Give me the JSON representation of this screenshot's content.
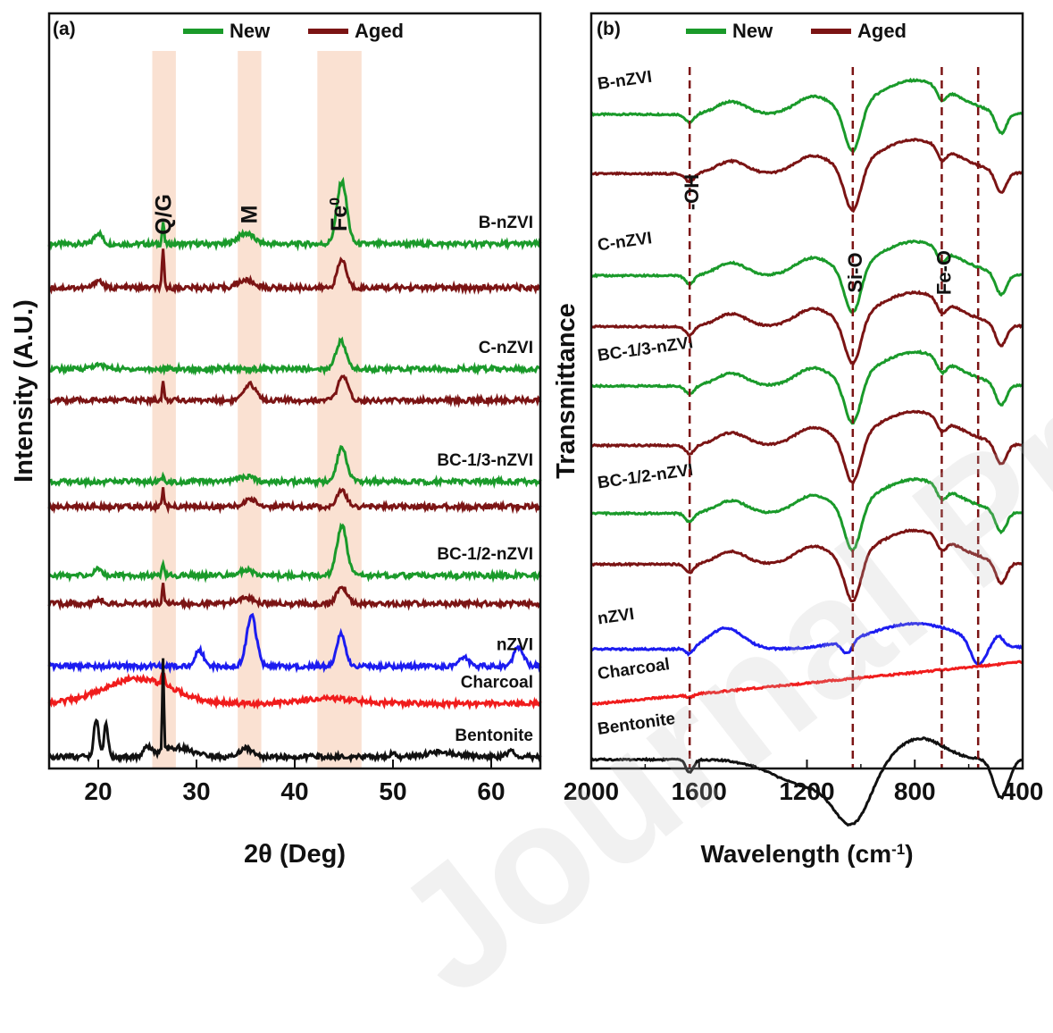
{
  "watermark": "Journal Pre-proof",
  "colors": {
    "new": "#1a9a2a",
    "aged": "#7b1414",
    "nzvi": "#1c1cf0",
    "charcoal": "#f01c1c",
    "bentonite": "#111111",
    "band": "#f8d7c3",
    "dashed": "#7b1414"
  },
  "chart_data": [
    {
      "type": "line",
      "panel_label": "(a)",
      "xlabel": "2θ (Deg)",
      "ylabel": "Intensity (A.U.)",
      "xlim": [
        15,
        65
      ],
      "xticks": [
        20,
        30,
        40,
        50,
        60
      ],
      "legend": {
        "placement": "top",
        "entries": [
          {
            "name": "New",
            "color": "#1a9a2a"
          },
          {
            "name": "Aged",
            "color": "#7b1414"
          }
        ]
      },
      "bands": [
        {
          "label": "Q/G",
          "range": [
            25.5,
            27.9
          ]
        },
        {
          "label": "M",
          "range": [
            34.2,
            36.6
          ]
        },
        {
          "label": "Fe",
          "sup": "0",
          "range": [
            42.3,
            46.8
          ]
        }
      ],
      "curves": [
        {
          "label": "B-nZVI",
          "color": "#1a9a2a",
          "offset": 8.2,
          "peaks": [
            [
              20,
              0.18,
              0.4
            ],
            [
              26.6,
              0.35,
              0.1
            ],
            [
              35,
              0.17,
              0.8
            ],
            [
              44.8,
              1.0,
              0.5
            ]
          ]
        },
        {
          "label": "",
          "color": "#7b1414",
          "offset": 7.5,
          "peaks": [
            [
              20,
              0.12,
              0.4
            ],
            [
              26.6,
              0.6,
              0.1
            ],
            [
              35,
              0.12,
              0.8
            ],
            [
              44.8,
              0.45,
              0.45
            ]
          ]
        },
        {
          "label": "C-nZVI",
          "color": "#1a9a2a",
          "offset": 6.2,
          "peaks": [
            [
              20,
              0.06,
              0.8
            ],
            [
              44.7,
              0.45,
              0.5
            ]
          ]
        },
        {
          "label": "",
          "color": "#7b1414",
          "offset": 5.7,
          "peaks": [
            [
              26.6,
              0.3,
              0.1
            ],
            [
              35.5,
              0.25,
              0.6
            ],
            [
              44.9,
              0.38,
              0.5
            ]
          ]
        },
        {
          "label": "BC-1/3-nZVI",
          "color": "#1a9a2a",
          "offset": 4.4,
          "peaks": [
            [
              26.6,
              0.12,
              0.1
            ],
            [
              35,
              0.08,
              0.8
            ],
            [
              44.8,
              0.55,
              0.5
            ]
          ]
        },
        {
          "label": "",
          "color": "#7b1414",
          "offset": 4.0,
          "peaks": [
            [
              26.6,
              0.3,
              0.1
            ],
            [
              35.5,
              0.12,
              0.6
            ],
            [
              44.8,
              0.25,
              0.5
            ]
          ]
        },
        {
          "label": "BC-1/2-nZVI",
          "color": "#1a9a2a",
          "offset": 2.9,
          "peaks": [
            [
              20,
              0.1,
              0.4
            ],
            [
              26.6,
              0.2,
              0.1
            ],
            [
              35,
              0.08,
              0.8
            ],
            [
              44.8,
              0.8,
              0.5
            ]
          ]
        },
        {
          "label": "",
          "color": "#7b1414",
          "offset": 2.45,
          "peaks": [
            [
              20,
              0.08,
              0.4
            ],
            [
              26.6,
              0.35,
              0.1
            ],
            [
              35,
              0.1,
              0.8
            ],
            [
              44.8,
              0.28,
              0.5
            ]
          ]
        },
        {
          "label": "nZVI",
          "color": "#1c1cf0",
          "offset": 1.45,
          "peaks": [
            [
              30.3,
              0.25,
              0.45
            ],
            [
              35.6,
              0.8,
              0.5
            ],
            [
              44.7,
              0.5,
              0.45
            ],
            [
              57.2,
              0.15,
              0.5
            ],
            [
              62.8,
              0.3,
              0.5
            ]
          ]
        },
        {
          "label": "Charcoal",
          "color": "#f01c1c",
          "offset": 0.85,
          "peaks": [
            [
              24,
              0.4,
              3.5
            ],
            [
              26.6,
              0.18,
              0.15
            ],
            [
              43.5,
              0.08,
              3
            ]
          ]
        },
        {
          "label": "Bentonite",
          "color": "#111111",
          "offset": 0.0,
          "peaks": [
            [
              19.8,
              0.6,
              0.25
            ],
            [
              20.8,
              0.55,
              0.2
            ],
            [
              25,
              0.15,
              0.4
            ],
            [
              26.6,
              1.5,
              0.08
            ],
            [
              28,
              0.15,
              1.5
            ],
            [
              35,
              0.15,
              0.6
            ],
            [
              50,
              0.05,
              0.3
            ],
            [
              55,
              0.08,
              1.5
            ],
            [
              62,
              0.08,
              0.5
            ]
          ]
        }
      ]
    },
    {
      "type": "line",
      "panel_label": "(b)",
      "xlabel": "Wavelength (cm",
      "xlabel_sup": "-1",
      "xlabel_end": ")",
      "ylabel": "Transmittance",
      "xlim": [
        2000,
        400
      ],
      "xticks": [
        2000,
        1600,
        1200,
        800,
        400
      ],
      "legend": {
        "placement": "top",
        "entries": [
          {
            "name": "New",
            "color": "#1a9a2a"
          },
          {
            "name": "Aged",
            "color": "#7b1414"
          }
        ]
      },
      "markers": [
        {
          "label": "-OH",
          "x": 1635
        },
        {
          "label": "Si-O",
          "x": 1030
        },
        {
          "label": "Fe-O",
          "x": 700
        },
        {
          "label": "",
          "x": 565
        }
      ],
      "curves": [
        {
          "label": "B-nZVI",
          "color": "#1a9a2a",
          "offset": 7.6
        },
        {
          "label": "",
          "color": "#7b1414",
          "offset": 6.9
        },
        {
          "label": "C-nZVI",
          "color": "#1a9a2a",
          "offset": 5.7
        },
        {
          "label": "",
          "color": "#7b1414",
          "offset": 5.1
        },
        {
          "label": "BC-1/3-nZVI",
          "color": "#1a9a2a",
          "offset": 4.4
        },
        {
          "label": "",
          "color": "#7b1414",
          "offset": 3.7
        },
        {
          "label": "BC-1/2-nZVI",
          "color": "#1a9a2a",
          "offset": 2.9
        },
        {
          "label": "",
          "color": "#7b1414",
          "offset": 2.3
        },
        {
          "label": "nZVI",
          "color": "#1c1cf0",
          "offset": 1.3
        },
        {
          "label": "Charcoal",
          "color": "#f01c1c",
          "offset": 0.65
        },
        {
          "label": "Bentonite",
          "color": "#111111",
          "offset": 0.0
        }
      ]
    }
  ]
}
